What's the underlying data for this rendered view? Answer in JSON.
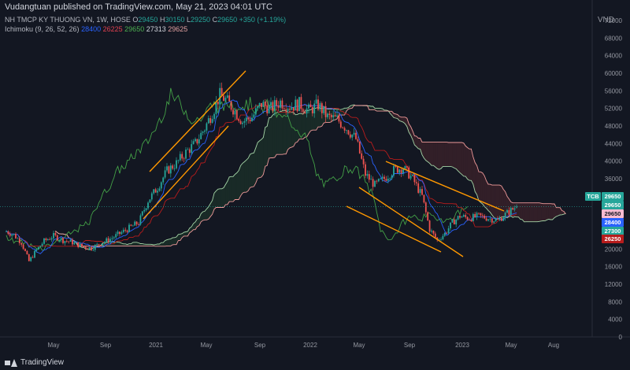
{
  "header": {
    "published": "Vudangtuan published on TradingView.com, May 21, 2023 04:01 UTC",
    "currency": "VND"
  },
  "legend": {
    "symbol": "NH TMCP KY THUONG VN, 1W, HOSE",
    "o_label": "O",
    "o_val": "29450",
    "h_label": "H",
    "h_val": "30150",
    "l_label": "L",
    "l_val": "29250",
    "c_label": "C",
    "c_val": "29650",
    "change": "+350 (+1.19%)",
    "ichimoku_label": "Ichimoku (9, 26, 52, 26)",
    "ich_v1": "28400",
    "ich_v2": "26225",
    "ich_v3": "29650",
    "ich_v4": "27313",
    "ich_v5": "29625"
  },
  "footer": {
    "brand": "TradingView"
  },
  "colors": {
    "up": "#26a69a",
    "down": "#ef5350",
    "conversion": "#2962ff",
    "base": "#b71c1c",
    "lagging": "#43a047",
    "spanA": "#a5d6a7",
    "spanB": "#ef9a9a",
    "trend": "#ff9800"
  },
  "chart_data": {
    "type": "candlestick",
    "y_ticks": [
      0,
      4000,
      8000,
      12000,
      16000,
      20000,
      24000,
      28000,
      32000,
      36000,
      40000,
      44000,
      48000,
      52000,
      56000,
      60000,
      64000,
      68000,
      72000
    ],
    "x_labels": [
      "May",
      "Sep",
      "2021",
      "May",
      "Sep",
      "2022",
      "May",
      "Sep",
      "2023",
      "May",
      "Aug"
    ],
    "price_path": [
      [
        0,
        24000
      ],
      [
        4,
        23200
      ],
      [
        8,
        21500
      ],
      [
        12,
        17200
      ],
      [
        16,
        19800
      ],
      [
        20,
        21800
      ],
      [
        25,
        23000
      ],
      [
        30,
        22000
      ],
      [
        35,
        21500
      ],
      [
        40,
        20600
      ],
      [
        45,
        20200
      ],
      [
        50,
        21300
      ],
      [
        55,
        22300
      ],
      [
        60,
        23500
      ],
      [
        65,
        24800
      ],
      [
        70,
        26000
      ],
      [
        75,
        31000
      ],
      [
        80,
        34000
      ],
      [
        85,
        37800
      ],
      [
        90,
        39500
      ],
      [
        95,
        42000
      ],
      [
        100,
        44000
      ],
      [
        105,
        47500
      ],
      [
        110,
        52000
      ],
      [
        113,
        55000
      ],
      [
        116,
        54000
      ],
      [
        120,
        52000
      ],
      [
        125,
        49000
      ],
      [
        130,
        50000
      ],
      [
        135,
        53000
      ],
      [
        140,
        52000
      ],
      [
        145,
        53500
      ],
      [
        150,
        52500
      ],
      [
        155,
        53000
      ],
      [
        160,
        51500
      ],
      [
        165,
        52800
      ],
      [
        170,
        50000
      ],
      [
        175,
        49500
      ],
      [
        180,
        47500
      ],
      [
        185,
        45000
      ],
      [
        190,
        37000
      ],
      [
        195,
        34500
      ],
      [
        200,
        36000
      ],
      [
        205,
        38000
      ],
      [
        210,
        38500
      ],
      [
        215,
        36000
      ],
      [
        220,
        32000
      ],
      [
        224,
        24500
      ],
      [
        228,
        22000
      ],
      [
        232,
        23500
      ],
      [
        236,
        26000
      ],
      [
        240,
        27500
      ],
      [
        245,
        27000
      ],
      [
        250,
        27500
      ],
      [
        255,
        27000
      ],
      [
        260,
        26500
      ],
      [
        265,
        28200
      ],
      [
        270,
        29650
      ]
    ],
    "series": [
      {
        "name": "O",
        "values": [
          29450
        ]
      },
      {
        "name": "H",
        "values": [
          30150
        ]
      },
      {
        "name": "L",
        "values": [
          29250
        ]
      },
      {
        "name": "C",
        "values": [
          29650
        ]
      }
    ],
    "price_badges": [
      {
        "label": "TCB",
        "value": "29650",
        "color": "#26a69a"
      },
      {
        "value": "29650",
        "color": "#26a69a"
      },
      {
        "value": "29650",
        "color": "#f8bbd0",
        "text_color": "#131722"
      },
      {
        "value": "28400",
        "color": "#2962ff"
      },
      {
        "value": "27300",
        "color": "#26a69a"
      },
      {
        "value": "26250",
        "color": "#b71c1c"
      }
    ],
    "ylim": [
      0,
      72000
    ]
  }
}
